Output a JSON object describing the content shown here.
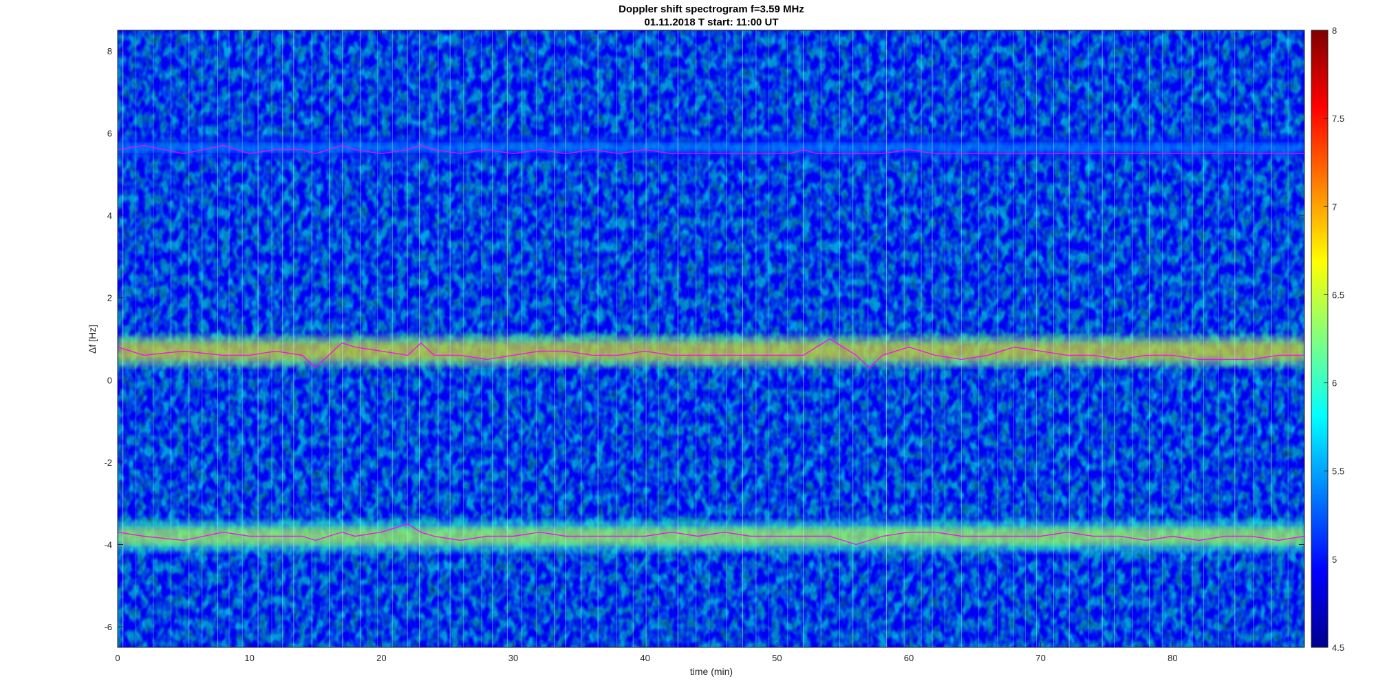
{
  "chart_data": {
    "type": "heatmap",
    "title": "Doppler shift spectrogram f=3.59 MHz",
    "subtitle": "01.11.2018   T start: 11:00 UT",
    "xlabel": "time (min)",
    "ylabel": "Δf [Hz]",
    "xlim": [
      0,
      90
    ],
    "ylim": [
      -6.5,
      8.5
    ],
    "xticks": [
      0,
      10,
      20,
      30,
      40,
      50,
      60,
      70,
      80
    ],
    "yticks": [
      -6,
      -4,
      -2,
      0,
      2,
      4,
      6,
      8
    ],
    "colorbar": {
      "colormap": "jet",
      "limits": [
        4.5,
        8
      ],
      "ticks": [
        4.5,
        5,
        5.5,
        6,
        6.5,
        7,
        7.5,
        8
      ]
    },
    "background_level": 4.9,
    "traces": [
      {
        "color": "#ff00ff",
        "x": [
          0,
          2,
          5,
          8,
          10,
          12,
          14,
          15,
          16,
          17,
          18,
          20,
          22,
          23,
          24,
          26,
          28,
          30,
          32,
          34,
          36,
          38,
          40,
          42,
          44,
          46,
          48,
          50,
          51,
          52,
          53,
          54,
          56,
          57,
          58,
          60,
          62,
          64,
          66,
          68,
          70,
          72,
          74,
          76,
          78,
          80,
          82,
          84,
          86,
          88,
          90
        ],
        "y": [
          5.6,
          5.7,
          5.5,
          5.7,
          5.5,
          5.6,
          5.6,
          5.5,
          5.6,
          5.7,
          5.6,
          5.5,
          5.6,
          5.7,
          5.6,
          5.5,
          5.6,
          5.5,
          5.6,
          5.5,
          5.6,
          5.5,
          5.6,
          5.5,
          5.5,
          5.5,
          5.5,
          5.5,
          5.5,
          5.6,
          5.5,
          5.5,
          5.5,
          5.5,
          5.5,
          5.6,
          5.5,
          5.5,
          5.5,
          5.5,
          5.5,
          5.5,
          5.5,
          5.5,
          5.5,
          5.5,
          5.5,
          5.5,
          5.5,
          5.5,
          5.5
        ]
      },
      {
        "color": "#ff00ff",
        "x": [
          0,
          2,
          5,
          8,
          10,
          12,
          14,
          15,
          16,
          17,
          18,
          20,
          22,
          23,
          24,
          26,
          28,
          30,
          32,
          34,
          36,
          38,
          40,
          42,
          44,
          46,
          48,
          50,
          51,
          52,
          53,
          54,
          56,
          57,
          58,
          60,
          62,
          64,
          66,
          68,
          70,
          72,
          74,
          76,
          78,
          80,
          82,
          84,
          86,
          88,
          90
        ],
        "y": [
          0.8,
          0.6,
          0.7,
          0.6,
          0.6,
          0.7,
          0.6,
          0.3,
          0.6,
          0.9,
          0.8,
          0.7,
          0.6,
          0.9,
          0.6,
          0.6,
          0.5,
          0.6,
          0.7,
          0.7,
          0.6,
          0.6,
          0.7,
          0.6,
          0.6,
          0.6,
          0.6,
          0.6,
          0.6,
          0.6,
          0.8,
          1.0,
          0.6,
          0.3,
          0.6,
          0.8,
          0.6,
          0.5,
          0.6,
          0.8,
          0.7,
          0.6,
          0.6,
          0.5,
          0.6,
          0.6,
          0.5,
          0.5,
          0.5,
          0.6,
          0.6
        ]
      },
      {
        "color": "#ff00ff",
        "x": [
          0,
          2,
          5,
          8,
          10,
          12,
          14,
          15,
          16,
          17,
          18,
          20,
          22,
          23,
          24,
          26,
          28,
          30,
          32,
          34,
          36,
          38,
          40,
          42,
          44,
          46,
          48,
          50,
          51,
          52,
          53,
          54,
          56,
          57,
          58,
          60,
          62,
          64,
          66,
          68,
          70,
          72,
          74,
          76,
          78,
          80,
          82,
          84,
          86,
          88,
          90
        ],
        "y": [
          -3.7,
          -3.8,
          -3.9,
          -3.7,
          -3.8,
          -3.8,
          -3.8,
          -3.9,
          -3.8,
          -3.7,
          -3.8,
          -3.7,
          -3.5,
          -3.7,
          -3.8,
          -3.9,
          -3.8,
          -3.8,
          -3.7,
          -3.8,
          -3.8,
          -3.8,
          -3.8,
          -3.7,
          -3.8,
          -3.7,
          -3.8,
          -3.8,
          -3.8,
          -3.8,
          -3.8,
          -3.8,
          -4.0,
          -3.9,
          -3.8,
          -3.7,
          -3.7,
          -3.8,
          -3.8,
          -3.8,
          -3.8,
          -3.7,
          -3.8,
          -3.8,
          -3.9,
          -3.8,
          -3.9,
          -3.8,
          -3.8,
          -3.9,
          -3.8
        ]
      }
    ],
    "bands": [
      {
        "y_center": 5.65,
        "y_width": 0.35,
        "intensity": 5.9
      },
      {
        "y_center": 0.7,
        "y_width": 0.55,
        "intensity": 7.2
      },
      {
        "y_center": -3.8,
        "y_width": 0.55,
        "intensity": 6.9
      }
    ],
    "grid": false,
    "legend": "none"
  }
}
